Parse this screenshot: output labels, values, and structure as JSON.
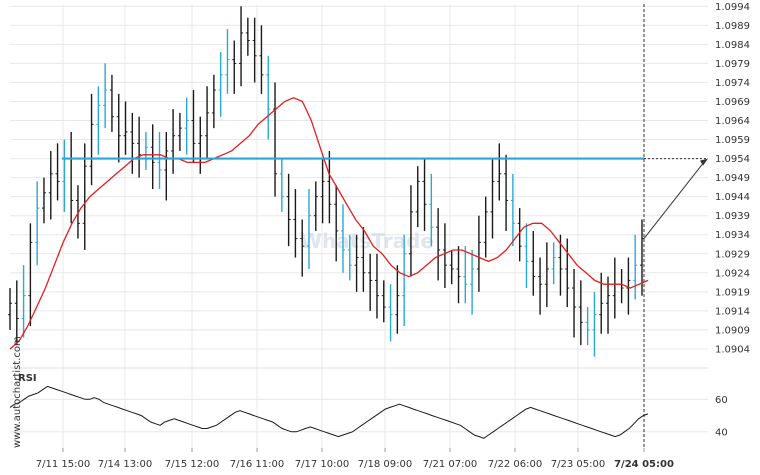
{
  "chart_data": [
    {
      "type": "ohlc",
      "y_tick_labels": [
        "1.0994",
        "1.0989",
        "1.0984",
        "1.0979",
        "1.0974",
        "1.0969",
        "1.0964",
        "1.0959",
        "1.0954",
        "1.0949",
        "1.0944",
        "1.0939",
        "1.0934",
        "1.0929",
        "1.0924",
        "1.0919",
        "1.0914",
        "1.0909",
        "1.0904"
      ],
      "ylim": [
        1.09011,
        1.09946
      ],
      "x_tick_labels": [
        "7/11 15:00",
        "7/14 13:00",
        "7/15 12:00",
        "7/16 11:00",
        "7/17 10:00",
        "7/18 09:00",
        "7/21 07:00",
        "7/22 06:00",
        "7/23 05:00",
        "7/24 05:00"
      ],
      "resistance_level": 1.0954,
      "price_series": [
        1.0916,
        1.0912,
        1.0918,
        1.0932,
        1.0941,
        1.0945,
        1.095,
        1.0948,
        1.0954,
        1.0943,
        1.0937,
        1.0952,
        1.0963,
        1.0968,
        1.0972,
        1.0965,
        1.096,
        1.0961,
        1.0958,
        1.0955,
        1.0957,
        1.0953,
        1.0951,
        1.0956,
        1.096,
        1.0962,
        1.0964,
        1.0958,
        1.096,
        1.0966,
        1.0972,
        1.0976,
        1.098,
        1.0979,
        1.0987,
        1.0985,
        1.0981,
        1.0976,
        1.0967,
        1.095,
        1.0944,
        1.0938,
        1.0933,
        1.0931,
        1.0939,
        1.0944,
        1.0948,
        1.0942,
        1.0935,
        1.093,
        1.0926,
        1.0928,
        1.0924,
        1.0922,
        1.0918,
        1.0915,
        1.0913,
        1.0918,
        1.0929,
        1.094,
        1.0948,
        1.0942,
        1.0936,
        1.093,
        1.0926,
        1.0925,
        1.0923,
        1.0921,
        1.0925,
        1.0932,
        1.094,
        1.0948,
        1.095,
        1.0943,
        1.0937,
        1.0931,
        1.0927,
        1.0923,
        1.0921,
        1.0925,
        1.0928,
        1.0925,
        1.092,
        1.0915,
        1.0911,
        1.0909,
        1.0913,
        1.0916,
        1.0918,
        1.0921,
        1.092,
        1.0922,
        1.0926,
        1.0933
      ],
      "moving_average": [
        1.0904,
        1.0906,
        1.091,
        1.0915,
        1.092,
        1.0926,
        1.0932,
        1.0937,
        1.0941,
        1.0944,
        1.0946,
        1.0948,
        1.095,
        1.0952,
        1.0954,
        1.0955,
        1.0955,
        1.0955,
        1.0954,
        1.0954,
        1.0953,
        1.0953,
        1.0953,
        1.0954,
        1.0955,
        1.0956,
        1.0958,
        1.096,
        1.0963,
        1.0965,
        1.0967,
        1.0969,
        1.097,
        1.0969,
        1.0964,
        1.0957,
        1.095,
        1.0946,
        1.0942,
        1.0938,
        1.0935,
        1.0931,
        1.0929,
        1.0926,
        1.0924,
        1.0923,
        1.0924,
        1.0926,
        1.0928,
        1.0929,
        1.093,
        1.093,
        1.0929,
        1.0928,
        1.0927,
        1.0928,
        1.093,
        1.0933,
        1.0936,
        1.0937,
        1.0937,
        1.0935,
        1.0932,
        1.0929,
        1.0926,
        1.0924,
        1.0922,
        1.0921,
        1.0921,
        1.0921,
        1.092,
        1.0921,
        1.0922
      ],
      "projection_target": 1.0954,
      "grid": true,
      "legend": "none"
    },
    {
      "type": "line",
      "label": "RSI",
      "y_tick_labels": [
        "60",
        "40"
      ],
      "ylim": [
        30,
        75
      ],
      "values": [
        55,
        57,
        58,
        60,
        62,
        63,
        64,
        66,
        68,
        67,
        66,
        65,
        64,
        63,
        62,
        61,
        60,
        60,
        61,
        60,
        58,
        57,
        56,
        55,
        54,
        53,
        52,
        51,
        50,
        48,
        46,
        45,
        44,
        46,
        47,
        48,
        47,
        46,
        45,
        44,
        43,
        42,
        42,
        43,
        44,
        46,
        48,
        50,
        52,
        53,
        52,
        51,
        50,
        49,
        48,
        47,
        46,
        44,
        42,
        41,
        40,
        40,
        41,
        42,
        43,
        42,
        41,
        40,
        39,
        38,
        37,
        38,
        39,
        40,
        42,
        44,
        46,
        48,
        50,
        52,
        54,
        55,
        56,
        57,
        56,
        55,
        54,
        53,
        52,
        51,
        50,
        49,
        48,
        47,
        46,
        45,
        44,
        42,
        40,
        38,
        37,
        36,
        38,
        40,
        42,
        44,
        46,
        48,
        50,
        52,
        54,
        55,
        54,
        53,
        52,
        51,
        50,
        49,
        48,
        47,
        46,
        45,
        44,
        43,
        42,
        41,
        40,
        39,
        38,
        37,
        38,
        40,
        42,
        45,
        48,
        50,
        51
      ]
    }
  ],
  "watermark": {
    "vertical_text": "www.autochartist.com",
    "logo_text": "WhatsTrade"
  },
  "colors": {
    "candle": "#1a1a1a",
    "candle_recent": "#2aa8d8",
    "moving_average": "#e02020",
    "resistance": "#29a4db",
    "rsi_line": "#1a1a1a",
    "grid": "#e8e8e8"
  }
}
